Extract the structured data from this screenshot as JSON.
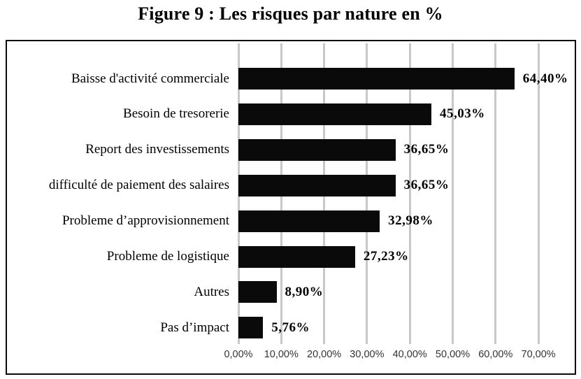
{
  "title": "Figure 9 : Les risques par nature en %",
  "colors": {
    "bar": "#0a0a0a",
    "gridline": "#c8c8c8",
    "border": "#0a0a0a",
    "tick_text": "#333333"
  },
  "chart_data": {
    "type": "bar",
    "orientation": "horizontal",
    "title": "Figure 9 : Les risques par nature en %",
    "categories": [
      "Baisse d'activité commerciale",
      "Besoin de tresorerie",
      "Report des investissements",
      "difficulté de paiement des salaires",
      "Probleme d’approvisionnement",
      "Probleme de logistique",
      "Autres",
      "Pas d’impact"
    ],
    "values": [
      64.4,
      45.03,
      36.65,
      36.65,
      32.98,
      27.23,
      8.9,
      5.76
    ],
    "value_labels": [
      "64,40%",
      "45,03%",
      "36,65%",
      "36,65%",
      "32,98%",
      "27,23%",
      "8,90%",
      "5,76%"
    ],
    "x_ticks": [
      "0,00%",
      "10,00%",
      "20,00%",
      "30,00%",
      "40,00%",
      "50,00%",
      "60,00%",
      "70,00%"
    ],
    "x_tick_values": [
      0,
      10,
      20,
      30,
      40,
      50,
      60,
      70
    ],
    "xlim": [
      0,
      70
    ],
    "xlabel": "",
    "ylabel": "",
    "grid": "vertical",
    "legend": "none",
    "bar_color": "#0a0a0a",
    "gridline_color": "#c8c8c8"
  }
}
